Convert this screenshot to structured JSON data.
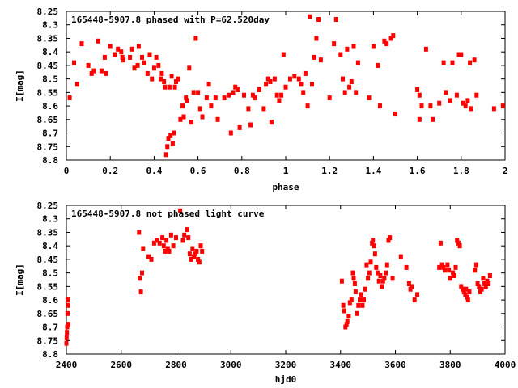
{
  "chart_data": [
    {
      "type": "scatter",
      "title": "165448-5907.8 phased with P=62.520day",
      "xlabel": "phase",
      "ylabel": "I[mag]",
      "xlim": [
        0,
        2
      ],
      "ylim": [
        8.8,
        8.25
      ],
      "y_inverted": true,
      "x_ticks": [
        0,
        0.2,
        0.4,
        0.6,
        0.8,
        1,
        1.2,
        1.4,
        1.6,
        1.8,
        2
      ],
      "x_tick_labels": [
        "0",
        "0.2",
        "0.4",
        "0.6",
        "0.8",
        "1",
        "1.2",
        "1.4",
        "1.6",
        "1.8",
        "2"
      ],
      "y_ticks": [
        8.25,
        8.3,
        8.35,
        8.4,
        8.45,
        8.5,
        8.55,
        8.6,
        8.65,
        8.7,
        8.75,
        8.8
      ],
      "y_tick_labels": [
        "8.25",
        "8.3",
        "8.35",
        "8.4",
        "8.45",
        "8.5",
        "8.55",
        "8.6",
        "8.65",
        "8.7",
        "8.75",
        "8.8"
      ],
      "marker_color": "#ff0000",
      "points": [
        [
          0.015,
          8.57
        ],
        [
          0.035,
          8.44
        ],
        [
          0.05,
          8.52
        ],
        [
          0.07,
          8.37
        ],
        [
          0.1,
          8.45
        ],
        [
          0.115,
          8.48
        ],
        [
          0.125,
          8.47
        ],
        [
          0.145,
          8.36
        ],
        [
          0.16,
          8.47
        ],
        [
          0.175,
          8.42
        ],
        [
          0.18,
          8.48
        ],
        [
          0.2,
          8.38
        ],
        [
          0.22,
          8.41
        ],
        [
          0.235,
          8.39
        ],
        [
          0.25,
          8.4
        ],
        [
          0.255,
          8.42
        ],
        [
          0.26,
          8.43
        ],
        [
          0.29,
          8.42
        ],
        [
          0.3,
          8.39
        ],
        [
          0.31,
          8.46
        ],
        [
          0.325,
          8.45
        ],
        [
          0.33,
          8.38
        ],
        [
          0.345,
          8.42
        ],
        [
          0.355,
          8.44
        ],
        [
          0.37,
          8.48
        ],
        [
          0.38,
          8.41
        ],
        [
          0.39,
          8.5
        ],
        [
          0.4,
          8.46
        ],
        [
          0.41,
          8.42
        ],
        [
          0.42,
          8.45
        ],
        [
          0.43,
          8.5
        ],
        [
          0.435,
          8.48
        ],
        [
          0.445,
          8.51
        ],
        [
          0.45,
          8.53
        ],
        [
          0.455,
          8.78
        ],
        [
          0.46,
          8.75
        ],
        [
          0.465,
          8.72
        ],
        [
          0.47,
          8.53
        ],
        [
          0.475,
          8.71
        ],
        [
          0.48,
          8.49
        ],
        [
          0.485,
          8.74
        ],
        [
          0.49,
          8.7
        ],
        [
          0.495,
          8.53
        ],
        [
          0.5,
          8.51
        ],
        [
          0.51,
          8.5
        ],
        [
          0.52,
          8.65
        ],
        [
          0.53,
          8.6
        ],
        [
          0.535,
          8.64
        ],
        [
          0.545,
          8.57
        ],
        [
          0.55,
          8.58
        ],
        [
          0.56,
          8.46
        ],
        [
          0.57,
          8.66
        ],
        [
          0.58,
          8.55
        ],
        [
          0.59,
          8.35
        ],
        [
          0.6,
          8.55
        ],
        [
          0.61,
          8.61
        ],
        [
          0.62,
          8.64
        ],
        [
          0.64,
          8.57
        ],
        [
          0.65,
          8.52
        ],
        [
          0.66,
          8.6
        ],
        [
          0.68,
          8.57
        ],
        [
          0.69,
          8.65
        ],
        [
          0.72,
          8.57
        ],
        [
          0.74,
          8.56
        ],
        [
          0.75,
          8.7
        ],
        [
          0.76,
          8.55
        ],
        [
          0.77,
          8.53
        ],
        [
          0.78,
          8.54
        ],
        [
          0.79,
          8.68
        ],
        [
          0.81,
          8.56
        ],
        [
          0.83,
          8.61
        ],
        [
          0.84,
          8.67
        ],
        [
          0.85,
          8.56
        ],
        [
          0.86,
          8.57
        ],
        [
          0.88,
          8.54
        ],
        [
          0.9,
          8.61
        ],
        [
          0.91,
          8.52
        ],
        [
          0.92,
          8.5
        ],
        [
          0.93,
          8.51
        ],
        [
          0.935,
          8.66
        ],
        [
          0.95,
          8.5
        ],
        [
          0.96,
          8.56
        ],
        [
          0.97,
          8.58
        ],
        [
          0.98,
          8.56
        ],
        [
          0.99,
          8.41
        ],
        [
          1.0,
          8.53
        ],
        [
          1.02,
          8.5
        ],
        [
          1.04,
          8.49
        ],
        [
          1.06,
          8.5
        ],
        [
          1.07,
          8.52
        ],
        [
          1.08,
          8.55
        ],
        [
          1.09,
          8.48
        ],
        [
          1.1,
          8.6
        ],
        [
          1.11,
          8.27
        ],
        [
          1.12,
          8.52
        ],
        [
          1.13,
          8.42
        ],
        [
          1.14,
          8.35
        ],
        [
          1.15,
          8.28
        ],
        [
          1.16,
          8.43
        ],
        [
          1.2,
          8.57
        ],
        [
          1.22,
          8.37
        ],
        [
          1.23,
          8.28
        ],
        [
          1.25,
          8.41
        ],
        [
          1.26,
          8.5
        ],
        [
          1.27,
          8.55
        ],
        [
          1.28,
          8.39
        ],
        [
          1.29,
          8.53
        ],
        [
          1.3,
          8.51
        ],
        [
          1.31,
          8.38
        ],
        [
          1.32,
          8.55
        ],
        [
          1.33,
          8.44
        ],
        [
          1.38,
          8.57
        ],
        [
          1.4,
          8.38
        ],
        [
          1.42,
          8.45
        ],
        [
          1.43,
          8.6
        ],
        [
          1.45,
          8.36
        ],
        [
          1.46,
          8.37
        ],
        [
          1.48,
          8.35
        ],
        [
          1.49,
          8.34
        ],
        [
          1.5,
          8.63
        ],
        [
          1.6,
          8.54
        ],
        [
          1.61,
          8.56
        ],
        [
          1.61,
          8.65
        ],
        [
          1.62,
          8.6
        ],
        [
          1.64,
          8.39
        ],
        [
          1.66,
          8.6
        ],
        [
          1.67,
          8.65
        ],
        [
          1.7,
          8.59
        ],
        [
          1.72,
          8.44
        ],
        [
          1.73,
          8.55
        ],
        [
          1.75,
          8.58
        ],
        [
          1.76,
          8.44
        ],
        [
          1.78,
          8.56
        ],
        [
          1.79,
          8.41
        ],
        [
          1.8,
          8.41
        ],
        [
          1.81,
          8.59
        ],
        [
          1.82,
          8.6
        ],
        [
          1.83,
          8.58
        ],
        [
          1.84,
          8.44
        ],
        [
          1.845,
          8.61
        ],
        [
          1.86,
          8.43
        ],
        [
          1.87,
          8.56
        ],
        [
          1.95,
          8.61
        ],
        [
          1.99,
          8.6
        ]
      ]
    },
    {
      "type": "scatter",
      "title": "165448-5907.8 not phased light curve",
      "xlabel": "hjd0",
      "ylabel": "I[mag]",
      "xlim": [
        2400,
        4000
      ],
      "ylim": [
        8.8,
        8.25
      ],
      "y_inverted": true,
      "x_ticks": [
        2400,
        2600,
        2800,
        3000,
        3200,
        3400,
        3600,
        3800,
        4000
      ],
      "x_tick_labels": [
        "2400",
        "2600",
        "2800",
        "3000",
        "3200",
        "3400",
        "3600",
        "3800",
        "4000"
      ],
      "y_ticks": [
        8.25,
        8.3,
        8.35,
        8.4,
        8.45,
        8.5,
        8.55,
        8.6,
        8.65,
        8.7,
        8.75,
        8.8
      ],
      "y_tick_labels": [
        "8.25",
        "8.3",
        "8.35",
        "8.4",
        "8.45",
        "8.5",
        "8.55",
        "8.6",
        "8.65",
        "8.7",
        "8.75",
        "8.8"
      ],
      "marker_color": "#ff0000",
      "points": [
        [
          2400,
          8.76
        ],
        [
          2401,
          8.74
        ],
        [
          2402,
          8.72
        ],
        [
          2403,
          8.7
        ],
        [
          2404,
          8.65
        ],
        [
          2405,
          8.6
        ],
        [
          2406,
          8.62
        ],
        [
          2407,
          8.69
        ],
        [
          2665,
          8.35
        ],
        [
          2668,
          8.52
        ],
        [
          2672,
          8.57
        ],
        [
          2676,
          8.5
        ],
        [
          2680,
          8.41
        ],
        [
          2700,
          8.44
        ],
        [
          2710,
          8.45
        ],
        [
          2720,
          8.39
        ],
        [
          2730,
          8.38
        ],
        [
          2740,
          8.39
        ],
        [
          2750,
          8.37
        ],
        [
          2755,
          8.4
        ],
        [
          2760,
          8.42
        ],
        [
          2765,
          8.38
        ],
        [
          2770,
          8.41
        ],
        [
          2775,
          8.42
        ],
        [
          2782,
          8.36
        ],
        [
          2790,
          8.4
        ],
        [
          2800,
          8.37
        ],
        [
          2815,
          8.27
        ],
        [
          2825,
          8.38
        ],
        [
          2830,
          8.36
        ],
        [
          2840,
          8.34
        ],
        [
          2845,
          8.37
        ],
        [
          2850,
          8.43
        ],
        [
          2855,
          8.45
        ],
        [
          2860,
          8.41
        ],
        [
          2865,
          8.44
        ],
        [
          2870,
          8.43
        ],
        [
          2875,
          8.42
        ],
        [
          2880,
          8.45
        ],
        [
          2885,
          8.46
        ],
        [
          2890,
          8.4
        ],
        [
          2895,
          8.42
        ],
        [
          3405,
          8.53
        ],
        [
          3410,
          8.62
        ],
        [
          3413,
          8.64
        ],
        [
          3418,
          8.7
        ],
        [
          3422,
          8.69
        ],
        [
          3425,
          8.68
        ],
        [
          3430,
          8.66
        ],
        [
          3434,
          8.61
        ],
        [
          3440,
          8.6
        ],
        [
          3445,
          8.5
        ],
        [
          3448,
          8.52
        ],
        [
          3452,
          8.54
        ],
        [
          3455,
          8.57
        ],
        [
          3460,
          8.65
        ],
        [
          3465,
          8.62
        ],
        [
          3470,
          8.6
        ],
        [
          3475,
          8.58
        ],
        [
          3480,
          8.62
        ],
        [
          3485,
          8.6
        ],
        [
          3490,
          8.56
        ],
        [
          3495,
          8.47
        ],
        [
          3500,
          8.52
        ],
        [
          3505,
          8.5
        ],
        [
          3510,
          8.46
        ],
        [
          3515,
          8.39
        ],
        [
          3518,
          8.38
        ],
        [
          3522,
          8.4
        ],
        [
          3526,
          8.43
        ],
        [
          3530,
          8.48
        ],
        [
          3535,
          8.5
        ],
        [
          3540,
          8.53
        ],
        [
          3545,
          8.51
        ],
        [
          3550,
          8.55
        ],
        [
          3555,
          8.53
        ],
        [
          3560,
          8.52
        ],
        [
          3565,
          8.5
        ],
        [
          3570,
          8.47
        ],
        [
          3575,
          8.38
        ],
        [
          3580,
          8.37
        ],
        [
          3590,
          8.52
        ],
        [
          3620,
          8.44
        ],
        [
          3640,
          8.48
        ],
        [
          3650,
          8.54
        ],
        [
          3655,
          8.56
        ],
        [
          3660,
          8.55
        ],
        [
          3670,
          8.6
        ],
        [
          3680,
          8.58
        ],
        [
          3760,
          8.48
        ],
        [
          3765,
          8.39
        ],
        [
          3770,
          8.47
        ],
        [
          3775,
          8.48
        ],
        [
          3780,
          8.49
        ],
        [
          3790,
          8.47
        ],
        [
          3795,
          8.49
        ],
        [
          3800,
          8.52
        ],
        [
          3810,
          8.5
        ],
        [
          3815,
          8.51
        ],
        [
          3820,
          8.48
        ],
        [
          3825,
          8.38
        ],
        [
          3830,
          8.39
        ],
        [
          3835,
          8.4
        ],
        [
          3840,
          8.55
        ],
        [
          3845,
          8.56
        ],
        [
          3850,
          8.57
        ],
        [
          3855,
          8.58
        ],
        [
          3858,
          8.56
        ],
        [
          3862,
          8.59
        ],
        [
          3865,
          8.6
        ],
        [
          3870,
          8.57
        ],
        [
          3890,
          8.49
        ],
        [
          3895,
          8.47
        ],
        [
          3900,
          8.54
        ],
        [
          3905,
          8.55
        ],
        [
          3910,
          8.57
        ],
        [
          3915,
          8.56
        ],
        [
          3920,
          8.52
        ],
        [
          3925,
          8.54
        ],
        [
          3930,
          8.55
        ],
        [
          3935,
          8.53
        ],
        [
          3940,
          8.54
        ],
        [
          3945,
          8.51
        ]
      ]
    }
  ]
}
